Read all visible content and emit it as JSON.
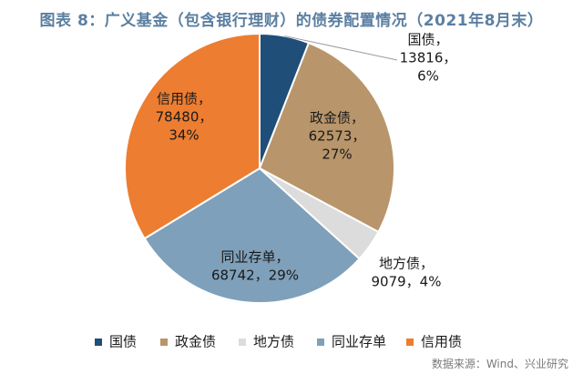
{
  "title": "图表 8：广义基金（包含银行理财）的债券配置情况（2021年8月末）",
  "source": "数据来源：Wind、兴业研究",
  "chart_data": {
    "type": "pie",
    "legend_position": "bottom",
    "slices": [
      {
        "name": "国债",
        "value": 13816,
        "percent": "6%",
        "color": "#1f4e79",
        "label_lines": [
          "国债，",
          "13816，",
          "6%"
        ]
      },
      {
        "name": "政金债",
        "value": 62573,
        "percent": "27%",
        "color": "#b8956a",
        "label_lines": [
          "政金债，",
          "62573，",
          "27%"
        ]
      },
      {
        "name": "地方债",
        "value": 9079,
        "percent": "4%",
        "color": "#dcdcdc",
        "label_lines": [
          "地方债，",
          "9079，4%"
        ]
      },
      {
        "name": "同业存单",
        "value": 68742,
        "percent": "29%",
        "color": "#7fa0ba",
        "label_lines": [
          "同业存单，",
          "68742，29%"
        ]
      },
      {
        "name": "信用债",
        "value": 78480,
        "percent": "34%",
        "color": "#ed7d31",
        "label_lines": [
          "信用债，",
          "78480，",
          "34%"
        ]
      }
    ]
  }
}
